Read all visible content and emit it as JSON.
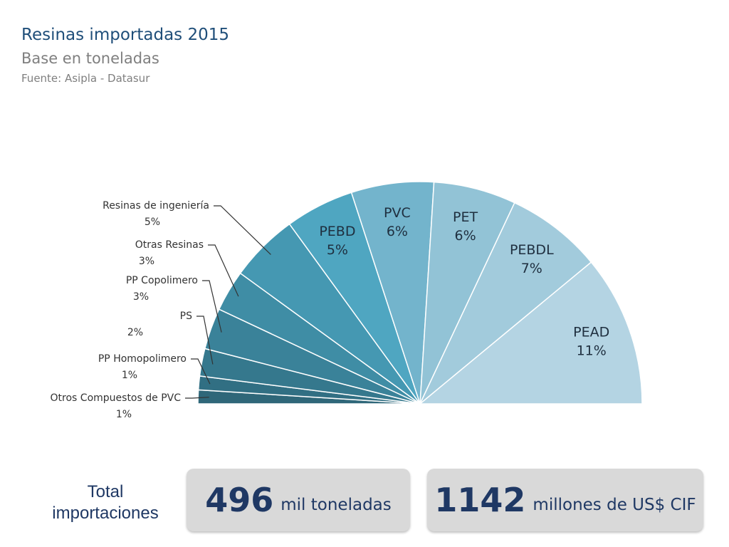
{
  "header": {
    "title": "Resinas importadas 2015",
    "subtitle": "Base en toneladas",
    "source": "Fuente: Asipla - Datasur"
  },
  "chart_data": {
    "type": "pie",
    "style": "semicircle",
    "slices": [
      {
        "label": "Otros Compuestos de PVC",
        "value": 1,
        "display": "1%",
        "color": "#2f6779"
      },
      {
        "label": "PP Homopolimero",
        "value": 1,
        "display": "1%",
        "color": "#316f83"
      },
      {
        "label": "PS",
        "value": 2,
        "display": "2%",
        "color": "#35788d"
      },
      {
        "label": "PP Copolimero",
        "value": 3,
        "display": "3%",
        "color": "#3a8299"
      },
      {
        "label": "Otras Resinas",
        "value": 3,
        "display": "3%",
        "color": "#3f8da5"
      },
      {
        "label": "Resinas de ingeniería",
        "value": 5,
        "display": "5%",
        "color": "#4598b2"
      },
      {
        "label": "PEBD",
        "value": 5,
        "display": "5%",
        "color": "#4fa6c1"
      },
      {
        "label": "PVC",
        "value": 6,
        "display": "6%",
        "color": "#73b4cc"
      },
      {
        "label": "PET",
        "value": 6,
        "display": "6%",
        "color": "#92c3d6"
      },
      {
        "label": "PEBDL",
        "value": 7,
        "display": "7%",
        "color": "#a2cbdc"
      },
      {
        "label": "PEAD",
        "value": 11,
        "display": "11%",
        "color": "#b4d4e3"
      }
    ]
  },
  "totals": {
    "label": "Total importaciones",
    "tons_value": "496",
    "tons_unit": "mil toneladas",
    "usd_value": "1142",
    "usd_unit": "millones de US$ CIF"
  }
}
